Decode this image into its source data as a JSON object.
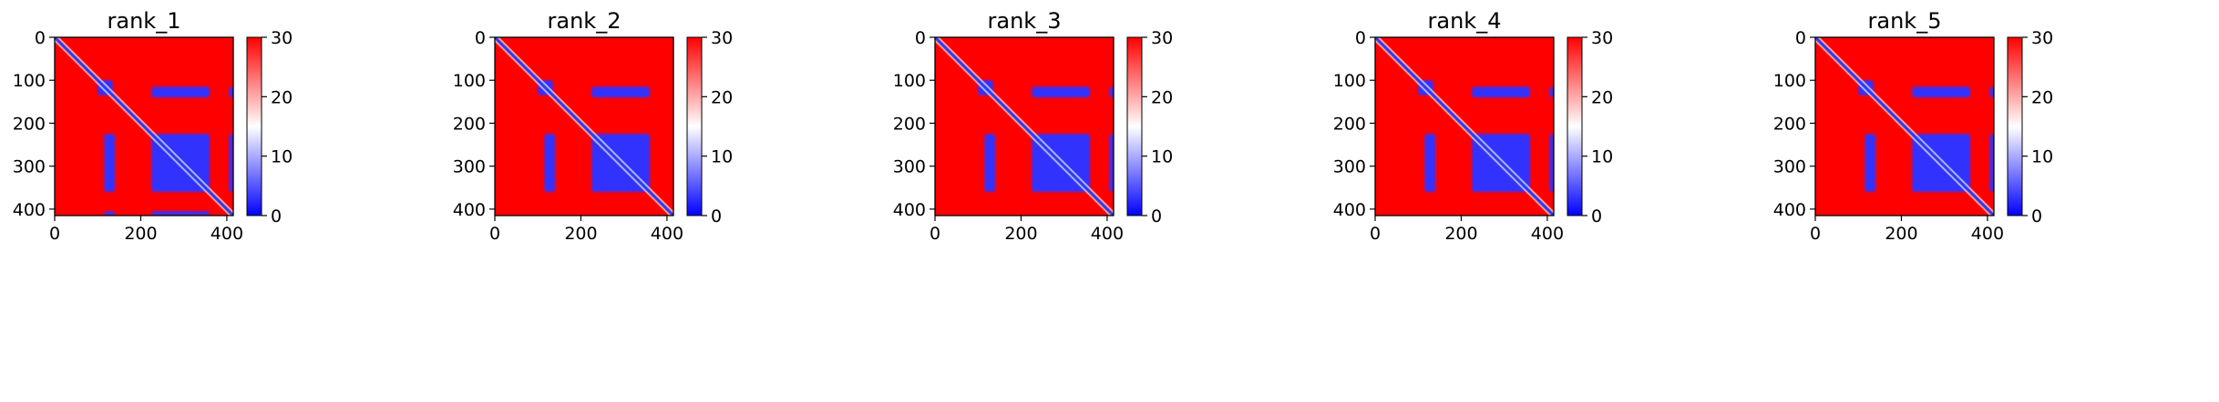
{
  "chart_data": [
    {
      "type": "heatmap",
      "title": "rank_1",
      "xlabel": "",
      "ylabel": "",
      "xlim": [
        0,
        415
      ],
      "ylim": [
        415,
        0
      ],
      "xticks": [
        0,
        200,
        400
      ],
      "yticks": [
        0,
        100,
        200,
        300,
        400
      ],
      "colorbar": {
        "min": 0,
        "max": 30,
        "ticks": [
          0,
          10,
          20,
          30
        ],
        "colormap": "bwr"
      },
      "regions": [
        {
          "x0": 100,
          "x1": 135,
          "y0": 100,
          "y1": 135,
          "value": 3
        },
        {
          "x0": 225,
          "x1": 360,
          "y0": 115,
          "y1": 140,
          "value": 3
        },
        {
          "x0": 115,
          "x1": 140,
          "y0": 225,
          "y1": 360,
          "value": 3
        },
        {
          "x0": 225,
          "x1": 360,
          "y0": 225,
          "y1": 360,
          "value": 3
        },
        {
          "x0": 405,
          "x1": 415,
          "y0": 115,
          "y1": 140,
          "value": 3
        },
        {
          "x0": 405,
          "x1": 415,
          "y0": 225,
          "y1": 360,
          "value": 3
        },
        {
          "x0": 115,
          "x1": 140,
          "y0": 405,
          "y1": 415,
          "value": 3
        },
        {
          "x0": 225,
          "x1": 360,
          "y0": 405,
          "y1": 415,
          "value": 3
        }
      ]
    },
    {
      "type": "heatmap",
      "title": "rank_2",
      "xlabel": "",
      "ylabel": "",
      "xlim": [
        0,
        415
      ],
      "ylim": [
        415,
        0
      ],
      "xticks": [
        0,
        200,
        400
      ],
      "yticks": [
        0,
        100,
        200,
        300,
        400
      ],
      "colorbar": {
        "min": 0,
        "max": 30,
        "ticks": [
          0,
          10,
          20,
          30
        ],
        "colormap": "bwr"
      },
      "regions": [
        {
          "x0": 100,
          "x1": 135,
          "y0": 100,
          "y1": 135,
          "value": 3
        },
        {
          "x0": 225,
          "x1": 360,
          "y0": 115,
          "y1": 140,
          "value": 3
        },
        {
          "x0": 115,
          "x1": 140,
          "y0": 225,
          "y1": 360,
          "value": 3
        },
        {
          "x0": 225,
          "x1": 360,
          "y0": 225,
          "y1": 360,
          "value": 3
        }
      ]
    },
    {
      "type": "heatmap",
      "title": "rank_3",
      "xlabel": "",
      "ylabel": "",
      "xlim": [
        0,
        415
      ],
      "ylim": [
        415,
        0
      ],
      "xticks": [
        0,
        200,
        400
      ],
      "yticks": [
        0,
        100,
        200,
        300,
        400
      ],
      "colorbar": {
        "min": 0,
        "max": 30,
        "ticks": [
          0,
          10,
          20,
          30
        ],
        "colormap": "bwr"
      },
      "regions": [
        {
          "x0": 100,
          "x1": 135,
          "y0": 100,
          "y1": 135,
          "value": 3
        },
        {
          "x0": 225,
          "x1": 360,
          "y0": 115,
          "y1": 140,
          "value": 3
        },
        {
          "x0": 115,
          "x1": 140,
          "y0": 225,
          "y1": 360,
          "value": 3
        },
        {
          "x0": 225,
          "x1": 360,
          "y0": 225,
          "y1": 360,
          "value": 3
        },
        {
          "x0": 405,
          "x1": 415,
          "y0": 115,
          "y1": 140,
          "value": 3
        },
        {
          "x0": 405,
          "x1": 415,
          "y0": 225,
          "y1": 360,
          "value": 3
        }
      ]
    },
    {
      "type": "heatmap",
      "title": "rank_4",
      "xlabel": "",
      "ylabel": "",
      "xlim": [
        0,
        415
      ],
      "ylim": [
        415,
        0
      ],
      "xticks": [
        0,
        200,
        400
      ],
      "yticks": [
        0,
        100,
        200,
        300,
        400
      ],
      "colorbar": {
        "min": 0,
        "max": 30,
        "ticks": [
          0,
          10,
          20,
          30
        ],
        "colormap": "bwr"
      },
      "regions": [
        {
          "x0": 100,
          "x1": 135,
          "y0": 100,
          "y1": 135,
          "value": 3
        },
        {
          "x0": 225,
          "x1": 360,
          "y0": 115,
          "y1": 140,
          "value": 3
        },
        {
          "x0": 115,
          "x1": 140,
          "y0": 225,
          "y1": 360,
          "value": 3
        },
        {
          "x0": 225,
          "x1": 360,
          "y0": 225,
          "y1": 360,
          "value": 3
        },
        {
          "x0": 405,
          "x1": 415,
          "y0": 115,
          "y1": 140,
          "value": 3
        },
        {
          "x0": 405,
          "x1": 415,
          "y0": 225,
          "y1": 360,
          "value": 3
        }
      ]
    },
    {
      "type": "heatmap",
      "title": "rank_5",
      "xlabel": "",
      "ylabel": "",
      "xlim": [
        0,
        415
      ],
      "ylim": [
        415,
        0
      ],
      "xticks": [
        0,
        200,
        400
      ],
      "yticks": [
        0,
        100,
        200,
        300,
        400
      ],
      "colorbar": {
        "min": 0,
        "max": 30,
        "ticks": [
          0,
          10,
          20,
          30
        ],
        "colormap": "bwr"
      },
      "regions": [
        {
          "x0": 100,
          "x1": 135,
          "y0": 100,
          "y1": 135,
          "value": 3
        },
        {
          "x0": 225,
          "x1": 360,
          "y0": 115,
          "y1": 140,
          "value": 3
        },
        {
          "x0": 115,
          "x1": 140,
          "y0": 225,
          "y1": 360,
          "value": 3
        },
        {
          "x0": 225,
          "x1": 360,
          "y0": 225,
          "y1": 360,
          "value": 3
        },
        {
          "x0": 405,
          "x1": 415,
          "y0": 115,
          "y1": 140,
          "value": 3
        },
        {
          "x0": 405,
          "x1": 415,
          "y0": 225,
          "y1": 360,
          "value": 3
        }
      ]
    }
  ],
  "colors": {
    "high": "#ff0000",
    "mid": "#ffffff",
    "low": "#0000ff",
    "diagonal": "#2a3df0"
  }
}
